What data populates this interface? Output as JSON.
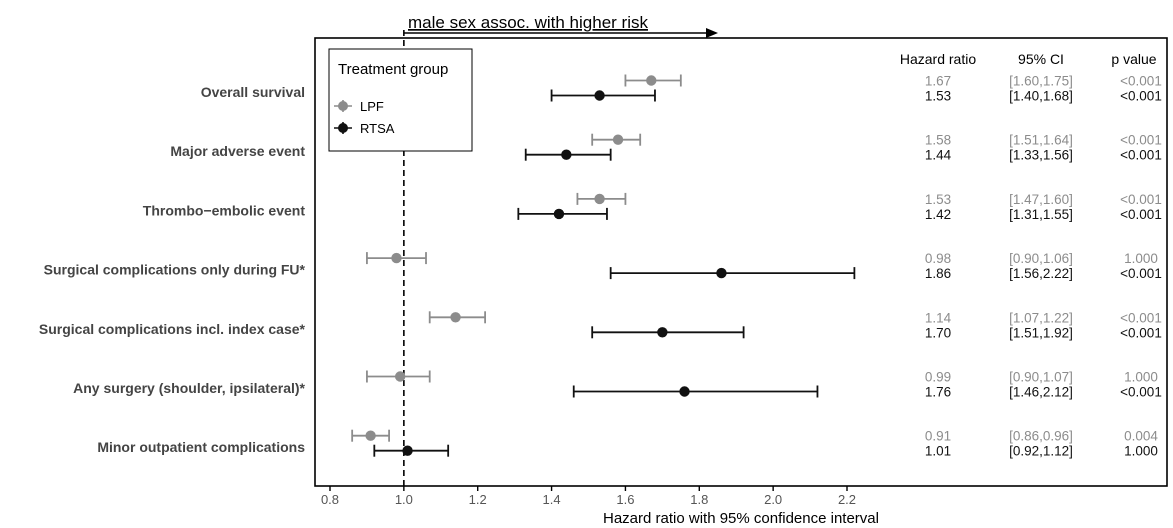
{
  "chart_data": {
    "type": "forest",
    "annotation": "male sex assoc. with higher risk",
    "xlabel": "Hazard ratio with 95% confidence interval",
    "xlim": [
      0.75,
      2.95
    ],
    "xticks": [
      "0.8",
      "1.0",
      "1.2",
      "1.4",
      "1.6",
      "1.8",
      "2.0",
      "2.2"
    ],
    "reference_line": 1.0,
    "legend": {
      "title": "Treatment group",
      "placement": "top-left",
      "entries": [
        "LPF",
        "RTSA"
      ]
    },
    "columns": [
      "Hazard ratio",
      "95% CI",
      "p value"
    ],
    "colors": {
      "LPF": "#8c8c8c",
      "RTSA": "#111111"
    },
    "categories": [
      "Overall survival",
      "Major adverse event",
      "Thrombo−embolic event",
      "Surgical complications only during FU*",
      "Surgical complications incl. index case*",
      "Any surgery (shoulder, ipsilateral)*",
      "Minor outpatient complications"
    ],
    "series": [
      {
        "name": "LPF",
        "rows": [
          {
            "hr": 1.67,
            "lo": 1.6,
            "hi": 1.75,
            "hr_text": "1.67",
            "ci_text": "[1.60,1.75]",
            "p_text": "<0.001"
          },
          {
            "hr": 1.58,
            "lo": 1.51,
            "hi": 1.64,
            "hr_text": "1.58",
            "ci_text": "[1.51,1.64]",
            "p_text": "<0.001"
          },
          {
            "hr": 1.53,
            "lo": 1.47,
            "hi": 1.6,
            "hr_text": "1.53",
            "ci_text": "[1.47,1.60]",
            "p_text": "<0.001"
          },
          {
            "hr": 0.98,
            "lo": 0.9,
            "hi": 1.06,
            "hr_text": "0.98",
            "ci_text": "[0.90,1.06]",
            "p_text": "1.000"
          },
          {
            "hr": 1.14,
            "lo": 1.07,
            "hi": 1.22,
            "hr_text": "1.14",
            "ci_text": "[1.07,1.22]",
            "p_text": "<0.001"
          },
          {
            "hr": 0.99,
            "lo": 0.9,
            "hi": 1.07,
            "hr_text": "0.99",
            "ci_text": "[0.90,1.07]",
            "p_text": "1.000"
          },
          {
            "hr": 0.91,
            "lo": 0.86,
            "hi": 0.96,
            "hr_text": "0.91",
            "ci_text": "[0.86,0.96]",
            "p_text": "0.004"
          }
        ]
      },
      {
        "name": "RTSA",
        "rows": [
          {
            "hr": 1.53,
            "lo": 1.4,
            "hi": 1.68,
            "hr_text": "1.53",
            "ci_text": "[1.40,1.68]",
            "p_text": "<0.001"
          },
          {
            "hr": 1.44,
            "lo": 1.33,
            "hi": 1.56,
            "hr_text": "1.44",
            "ci_text": "[1.33,1.56]",
            "p_text": "<0.001"
          },
          {
            "hr": 1.42,
            "lo": 1.31,
            "hi": 1.55,
            "hr_text": "1.42",
            "ci_text": "[1.31,1.55]",
            "p_text": "<0.001"
          },
          {
            "hr": 1.86,
            "lo": 1.56,
            "hi": 2.22,
            "hr_text": "1.86",
            "ci_text": "[1.56,2.22]",
            "p_text": "<0.001"
          },
          {
            "hr": 1.7,
            "lo": 1.51,
            "hi": 1.92,
            "hr_text": "1.70",
            "ci_text": "[1.51,1.92]",
            "p_text": "<0.001"
          },
          {
            "hr": 1.76,
            "lo": 1.46,
            "hi": 2.12,
            "hr_text": "1.76",
            "ci_text": "[1.46,2.12]",
            "p_text": "<0.001"
          },
          {
            "hr": 1.01,
            "lo": 0.92,
            "hi": 1.12,
            "hr_text": "1.01",
            "ci_text": "[0.92,1.12]",
            "p_text": "1.000"
          }
        ]
      }
    ]
  }
}
